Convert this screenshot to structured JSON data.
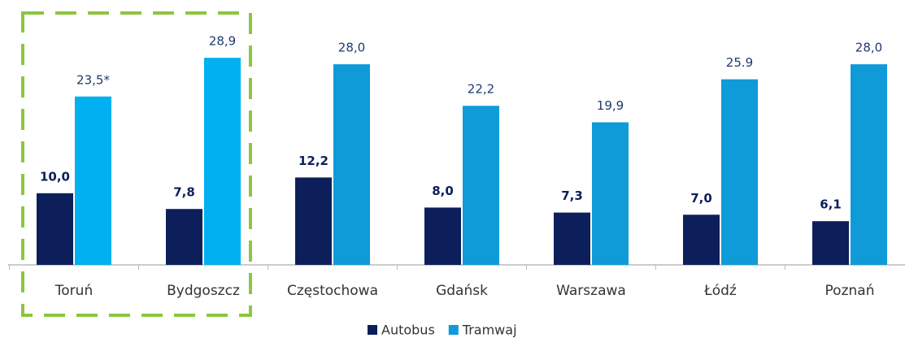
{
  "chart_data": {
    "type": "bar",
    "categories": [
      "Toruń",
      "Bydgoszcz",
      "Częstochowa",
      "Gdańsk",
      "Warszawa",
      "Łódź",
      "Poznań"
    ],
    "series": [
      {
        "name": "Autobus",
        "color": "#0c1f5b",
        "values": [
          10.0,
          7.8,
          12.2,
          8.0,
          7.3,
          7.0,
          6.1
        ],
        "value_labels": [
          "10,0",
          "7,8",
          "12,2",
          "8,0",
          "7,3",
          "7,0",
          "6,1"
        ]
      },
      {
        "name": "Tramwaj",
        "color": "#0f9ad8",
        "colors": [
          "#00b0f0",
          "#00b0f0",
          "#0f9ad8",
          "#0f9ad8",
          "#0f9ad8",
          "#0f9ad8",
          "#0f9ad8"
        ],
        "values": [
          23.5,
          28.9,
          28.0,
          22.2,
          19.9,
          25.9,
          28.0
        ],
        "value_labels": [
          "23,5*",
          "28,9",
          "28,0",
          "22,2",
          "19,9",
          "25.9",
          "28,0"
        ]
      }
    ],
    "ylim": [
      0,
      33
    ],
    "legend": "bottom"
  }
}
